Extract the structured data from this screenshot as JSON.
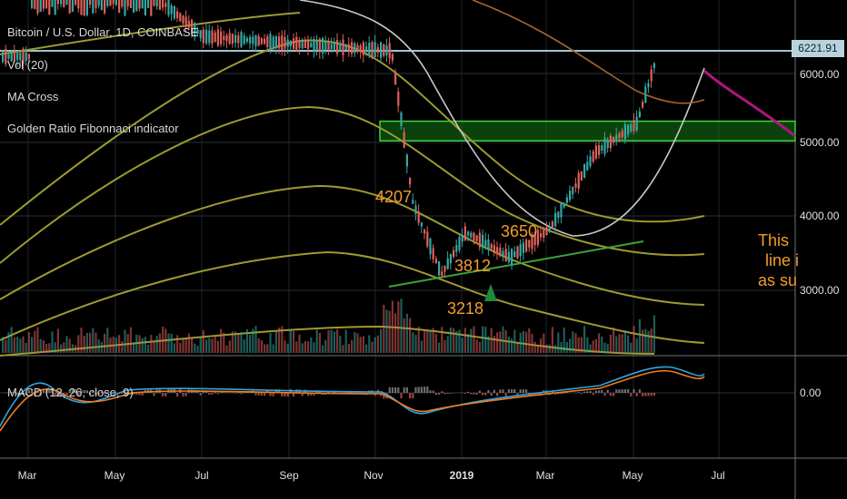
{
  "header": {
    "symbol_title": "Bitcoin / U.S. Dollar, 1D, COINBASE",
    "indicators": [
      "Vol (20)",
      "MA Cross",
      "Golden Ratio Fibonnaci indicator"
    ],
    "macd_label": "MACD (12, 26, close, 9)"
  },
  "price_tag": "6221.91",
  "annotations": {
    "label_4207": "4207",
    "label_3218": "3218",
    "label_3812": "3812",
    "label_3650": "3650",
    "note_lines": [
      "This",
      "line i",
      "as su"
    ]
  },
  "colors": {
    "background": "#000000",
    "candle_up": "#35a7a3",
    "candle_down": "#e0605a",
    "fib_band": "#9d9a2f",
    "ma_slow": "#c8c8c8",
    "ma_brown": "#a9642c",
    "projection": "#b0167c",
    "support_line": "#3aa33a",
    "annotation": "#f29d2b"
  },
  "chart_data": {
    "type": "candlestick",
    "title": "Bitcoin / U.S. Dollar, 1D, COINBASE",
    "x_ticks": [
      "Mar",
      "May",
      "Jul",
      "Sep",
      "Nov",
      "2019",
      "Mar",
      "May",
      "Jul"
    ],
    "y_ticks": [
      "6000.00",
      "5000.00",
      "4000.00",
      "3000.00"
    ],
    "macd_y_ticks": [
      "0.00"
    ],
    "last_price": 6221.91,
    "series_approx": [
      {
        "date": "2018-03",
        "close": 7000
      },
      {
        "date": "2018-05",
        "close": 7500
      },
      {
        "date": "2018-07",
        "close": 6500
      },
      {
        "date": "2018-09",
        "close": 6400
      },
      {
        "date": "2018-11-10",
        "close": 6300
      },
      {
        "date": "2018-11-25",
        "close": 4207
      },
      {
        "date": "2018-12-15",
        "close": 3218
      },
      {
        "date": "2019-01-01",
        "close": 3800
      },
      {
        "date": "2019-01-15",
        "close": 3650
      },
      {
        "date": "2019-02-01",
        "close": 3450
      },
      {
        "date": "2019-03-01",
        "close": 3850
      },
      {
        "date": "2019-04-02",
        "close": 4900
      },
      {
        "date": "2019-05-01",
        "close": 5300
      },
      {
        "date": "2019-05-15",
        "close": 6221.91
      }
    ],
    "resistance_zone": [
      5060,
      5330
    ]
  }
}
